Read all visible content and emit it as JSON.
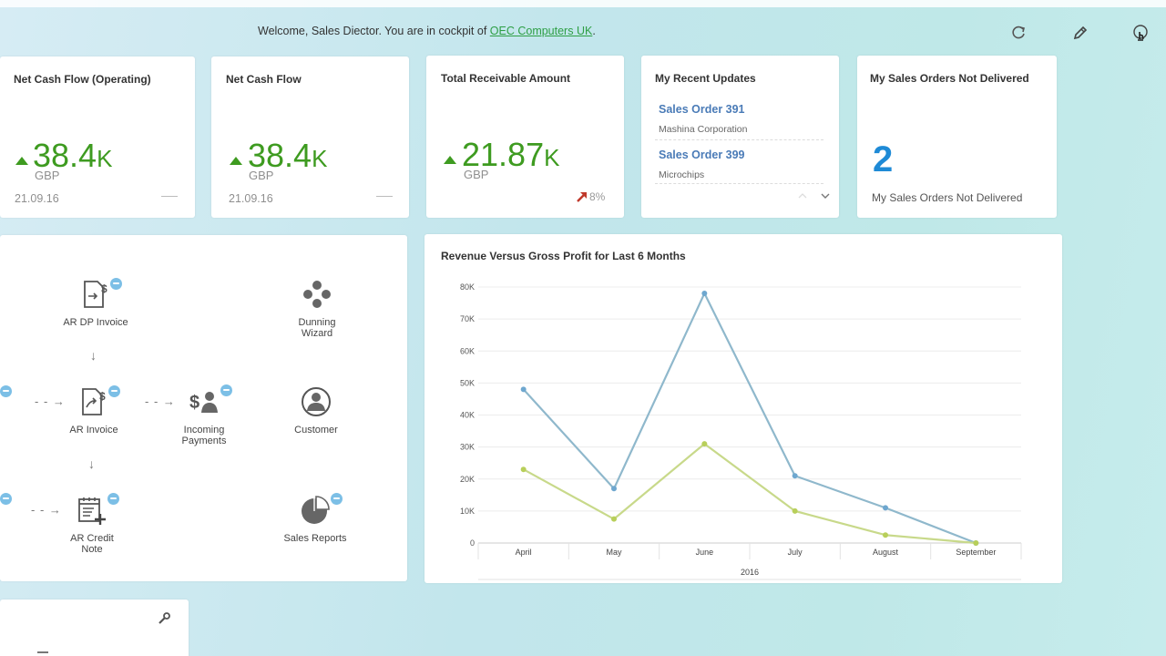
{
  "header": {
    "welcome_prefix": "Welcome, Sales Diector. You are in cockpit of",
    "company_link": "OEC Computers UK",
    "welcome_suffix": ".",
    "icons": [
      "refresh-icon",
      "pencil-icon",
      "help-icon"
    ]
  },
  "kpis": [
    {
      "title": "Net Cash Flow (Operating)",
      "value": "38.4",
      "suffix": "K",
      "unit": "GBP",
      "date": "21.09.16"
    },
    {
      "title": "Net Cash Flow",
      "value": "38.4",
      "suffix": "K",
      "unit": "GBP",
      "date": "21.09.16"
    },
    {
      "title": "Total Receivable Amount",
      "value": "21.87",
      "suffix": "K",
      "unit": "GBP",
      "trend": "8%"
    }
  ],
  "recent_updates": {
    "title": "My Recent Updates",
    "items": [
      {
        "title": "Sales Order 391",
        "subtitle": "Mashina Corporation"
      },
      {
        "title": "Sales Order 399",
        "subtitle": "Microchips"
      }
    ]
  },
  "not_delivered": {
    "title": "My Sales Orders Not Delivered",
    "count": "2",
    "subtitle": "My Sales Orders Not Delivered"
  },
  "flow": {
    "items": {
      "ar_dp_invoice": "AR DP Invoice",
      "dunning_wizard_1": "Dunning",
      "dunning_wizard_2": "Wizard",
      "ar_invoice": "AR Invoice",
      "incoming_payments_1": "Incoming",
      "incoming_payments_2": "Payments",
      "customer": "Customer",
      "ar_credit_note_1": "AR Credit",
      "ar_credit_note_2": "Note",
      "sales_reports": "Sales Reports"
    }
  },
  "colors": {
    "kpi_green": "#3e9b20",
    "trend_red": "#c0392b",
    "link_blue": "#4a7bb7",
    "count_blue": "#1e8ad6",
    "revenue_line": "#8fb8cc",
    "profit_line": "#c8d98a"
  },
  "chart_data": {
    "type": "line",
    "title": "Revenue Versus Gross Profit for Last 6 Months",
    "categories": [
      "April",
      "May",
      "June",
      "July",
      "August",
      "September"
    ],
    "xlabel": "2016",
    "ylabel": "",
    "ylim": [
      0,
      80000
    ],
    "yticks": [
      "0",
      "10K",
      "20K",
      "30K",
      "40K",
      "50K",
      "60K",
      "70K",
      "80K"
    ],
    "grid": true,
    "legend": "none",
    "series": [
      {
        "values": [
          48000,
          17000,
          78000,
          21000,
          11000,
          0
        ]
      },
      {
        "values": [
          23000,
          7500,
          31000,
          10000,
          2500,
          0
        ]
      }
    ]
  }
}
